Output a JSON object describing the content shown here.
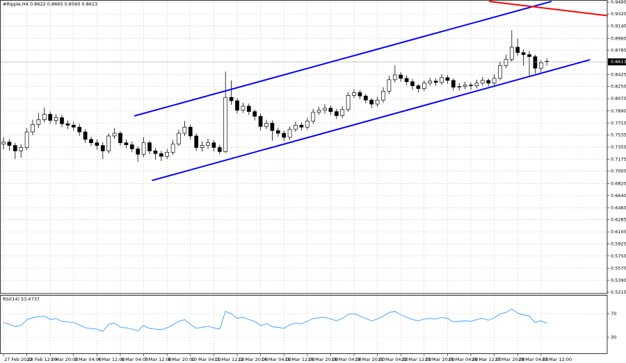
{
  "chart_data": {
    "type": "candlestick",
    "title": "#Ripple,H4 0.8622 0.8665 0.8560 0.8613",
    "up_color": "#ffffff",
    "down_color": "#000000",
    "grid": true,
    "categories": [
      "27 Feb 2022",
      null,
      null,
      null,
      "28 Feb 12:00",
      null,
      null,
      null,
      "1 Mar 20:00",
      null,
      null,
      null,
      "3 Mar 04:00",
      null,
      null,
      null,
      "4 Mar 12:00",
      null,
      null,
      null,
      "6 Mar 04:00",
      null,
      null,
      null,
      "7 Mar 12:00",
      null,
      null,
      null,
      "8 Mar 20:00",
      null,
      null,
      null,
      "10 Mar 04:00",
      null,
      null,
      null,
      "11 Mar 12:00",
      null,
      null,
      null,
      "12 Mar 20:00",
      null,
      null,
      null,
      "14 Mar 04:00",
      null,
      null,
      null,
      "15 Mar 12:00",
      null,
      null,
      null,
      "16 Mar 20:00",
      null,
      null,
      null,
      "18 Mar 04:00",
      null,
      null,
      null,
      "19 Mar 20:00",
      null,
      null,
      null,
      "21 Mar 04:00",
      null,
      null,
      null,
      "22 Mar 12:00",
      null,
      null,
      null,
      "23 Mar 20:00",
      null,
      null,
      null,
      "25 Mar 04:00",
      null,
      null,
      null,
      "26 Mar 12:00",
      null,
      null,
      null,
      "27 Mar 20:00",
      null,
      null,
      null,
      "29 Mar 04:00",
      null,
      null,
      null,
      "30 Mar 12:00",
      null
    ],
    "ohlc": [
      [
        0.74,
        0.75,
        0.732,
        0.743
      ],
      [
        0.743,
        0.747,
        0.73,
        0.738
      ],
      [
        0.738,
        0.742,
        0.718,
        0.73
      ],
      [
        0.73,
        0.74,
        0.72,
        0.735
      ],
      [
        0.735,
        0.764,
        0.731,
        0.758
      ],
      [
        0.758,
        0.776,
        0.753,
        0.769
      ],
      [
        0.769,
        0.786,
        0.764,
        0.776
      ],
      [
        0.776,
        0.794,
        0.772,
        0.784
      ],
      [
        0.784,
        0.788,
        0.77,
        0.775
      ],
      [
        0.775,
        0.784,
        0.769,
        0.779
      ],
      [
        0.779,
        0.783,
        0.765,
        0.77
      ],
      [
        0.77,
        0.775,
        0.762,
        0.768
      ],
      [
        0.768,
        0.773,
        0.76,
        0.765
      ],
      [
        0.765,
        0.77,
        0.752,
        0.758
      ],
      [
        0.758,
        0.762,
        0.742,
        0.747
      ],
      [
        0.747,
        0.751,
        0.737,
        0.742
      ],
      [
        0.742,
        0.747,
        0.732,
        0.738
      ],
      [
        0.738,
        0.743,
        0.718,
        0.73
      ],
      [
        0.73,
        0.756,
        0.726,
        0.752
      ],
      [
        0.752,
        0.764,
        0.748,
        0.756
      ],
      [
        0.756,
        0.759,
        0.738,
        0.742
      ],
      [
        0.742,
        0.747,
        0.734,
        0.739
      ],
      [
        0.739,
        0.744,
        0.728,
        0.733
      ],
      [
        0.733,
        0.737,
        0.714,
        0.725
      ],
      [
        0.725,
        0.75,
        0.721,
        0.742
      ],
      [
        0.742,
        0.745,
        0.725,
        0.73
      ],
      [
        0.73,
        0.734,
        0.717,
        0.726
      ],
      [
        0.726,
        0.73,
        0.715,
        0.722
      ],
      [
        0.722,
        0.733,
        0.718,
        0.728
      ],
      [
        0.728,
        0.746,
        0.724,
        0.74
      ],
      [
        0.74,
        0.761,
        0.737,
        0.756
      ],
      [
        0.756,
        0.774,
        0.752,
        0.765
      ],
      [
        0.765,
        0.769,
        0.747,
        0.752
      ],
      [
        0.752,
        0.756,
        0.73,
        0.735
      ],
      [
        0.735,
        0.744,
        0.729,
        0.738
      ],
      [
        0.738,
        0.748,
        0.733,
        0.742
      ],
      [
        0.742,
        0.746,
        0.729,
        0.735
      ],
      [
        0.735,
        0.739,
        0.725,
        0.729
      ],
      [
        0.729,
        0.847,
        0.727,
        0.809
      ],
      [
        0.809,
        0.834,
        0.798,
        0.804
      ],
      [
        0.804,
        0.808,
        0.785,
        0.79
      ],
      [
        0.79,
        0.801,
        0.786,
        0.796
      ],
      [
        0.796,
        0.8,
        0.783,
        0.788
      ],
      [
        0.788,
        0.791,
        0.775,
        0.781
      ],
      [
        0.781,
        0.785,
        0.76,
        0.766
      ],
      [
        0.766,
        0.776,
        0.762,
        0.771
      ],
      [
        0.771,
        0.775,
        0.745,
        0.76
      ],
      [
        0.76,
        0.764,
        0.751,
        0.756
      ],
      [
        0.756,
        0.76,
        0.744,
        0.75
      ],
      [
        0.75,
        0.766,
        0.746,
        0.762
      ],
      [
        0.762,
        0.773,
        0.758,
        0.768
      ],
      [
        0.768,
        0.772,
        0.76,
        0.765
      ],
      [
        0.765,
        0.779,
        0.761,
        0.774
      ],
      [
        0.774,
        0.792,
        0.77,
        0.787
      ],
      [
        0.787,
        0.795,
        0.783,
        0.79
      ],
      [
        0.79,
        0.799,
        0.785,
        0.793
      ],
      [
        0.793,
        0.797,
        0.783,
        0.788
      ],
      [
        0.788,
        0.792,
        0.777,
        0.782
      ],
      [
        0.782,
        0.796,
        0.778,
        0.791
      ],
      [
        0.791,
        0.817,
        0.788,
        0.812
      ],
      [
        0.812,
        0.821,
        0.808,
        0.816
      ],
      [
        0.816,
        0.82,
        0.806,
        0.811
      ],
      [
        0.811,
        0.814,
        0.8,
        0.805
      ],
      [
        0.805,
        0.808,
        0.793,
        0.799
      ],
      [
        0.799,
        0.81,
        0.795,
        0.805
      ],
      [
        0.805,
        0.824,
        0.801,
        0.818
      ],
      [
        0.818,
        0.841,
        0.814,
        0.835
      ],
      [
        0.835,
        0.856,
        0.831,
        0.842
      ],
      [
        0.842,
        0.846,
        0.832,
        0.837
      ],
      [
        0.837,
        0.841,
        0.827,
        0.832
      ],
      [
        0.832,
        0.836,
        0.82,
        0.826
      ],
      [
        0.826,
        0.829,
        0.816,
        0.822
      ],
      [
        0.822,
        0.834,
        0.818,
        0.83
      ],
      [
        0.83,
        0.838,
        0.826,
        0.833
      ],
      [
        0.833,
        0.837,
        0.826,
        0.831
      ],
      [
        0.831,
        0.843,
        0.827,
        0.838
      ],
      [
        0.838,
        0.842,
        0.829,
        0.834
      ],
      [
        0.834,
        0.837,
        0.819,
        0.824
      ],
      [
        0.824,
        0.83,
        0.819,
        0.825
      ],
      [
        0.825,
        0.832,
        0.821,
        0.827
      ],
      [
        0.827,
        0.831,
        0.82,
        0.826
      ],
      [
        0.826,
        0.835,
        0.822,
        0.83
      ],
      [
        0.83,
        0.839,
        0.826,
        0.834
      ],
      [
        0.834,
        0.837,
        0.825,
        0.83
      ],
      [
        0.83,
        0.843,
        0.827,
        0.837
      ],
      [
        0.837,
        0.862,
        0.834,
        0.856
      ],
      [
        0.856,
        0.872,
        0.852,
        0.865
      ],
      [
        0.865,
        0.908,
        0.861,
        0.883
      ],
      [
        0.883,
        0.896,
        0.87,
        0.875
      ],
      [
        0.875,
        0.88,
        0.856,
        0.872
      ],
      [
        0.872,
        0.877,
        0.841,
        0.869
      ],
      [
        0.869,
        0.872,
        0.844,
        0.852
      ],
      [
        0.852,
        0.864,
        0.846,
        0.86
      ],
      [
        0.8622,
        0.8665,
        0.856,
        0.8613
      ]
    ],
    "ylim": [
      0.5195,
      0.9526
    ],
    "yticks": [
      0.9495,
      {
        "value": 0.932,
        "label": "0.9320"
      },
      {
        "value": 0.914,
        "label": "0.9140"
      },
      {
        "value": 0.896,
        "label": "0.8960"
      },
      0.8785,
      0.8425,
      {
        "value": 0.825,
        "label": "0.8250"
      },
      {
        "value": 0.807,
        "label": "0.8070"
      },
      {
        "value": 0.789,
        "label": "0.7890"
      },
      {
        "value": 0.771,
        "label": "0.7710"
      },
      0.7535,
      0.7355,
      0.7175,
      {
        "value": 0.7,
        "label": "0.7000"
      },
      {
        "value": 0.682,
        "label": "0.6820"
      },
      {
        "value": 0.664,
        "label": "0.6640"
      },
      {
        "value": 0.646,
        "label": "0.6460"
      },
      0.6285,
      0.6105,
      0.5925,
      {
        "value": 0.575,
        "label": "0.5750"
      },
      {
        "value": 0.557,
        "label": "0.5570"
      },
      {
        "value": 0.539,
        "label": "0.5390"
      },
      0.5215
    ],
    "trendlines": [
      {
        "color": "#0000ff",
        "x": [
          22.4,
          93.8
        ],
        "y": [
          0.7816,
          0.9505
        ]
      },
      {
        "color": "#0000ff",
        "x": [
          25.4,
          100.4
        ],
        "y": [
          0.6863,
          0.8645
        ]
      },
      {
        "color": "#ff0000",
        "x": [
          83.1,
          103.3
        ],
        "y": [
          0.9505,
          0.9296
        ]
      }
    ],
    "indicator": {
      "type": "line",
      "label": "RSI(14) 53.4737",
      "color": "#1e90ff",
      "ylim": [
        0,
        100
      ],
      "yticks": [
        70,
        30
      ],
      "values": [
        55,
        52,
        48,
        50,
        60,
        63,
        65,
        66,
        60,
        62,
        57,
        56,
        55,
        51,
        46,
        45,
        44,
        40,
        52,
        54,
        47,
        46,
        44,
        41,
        50,
        45,
        44,
        43,
        46,
        51,
        57,
        60,
        52,
        45,
        47,
        49,
        46,
        44,
        74,
        70,
        62,
        64,
        60,
        57,
        50,
        53,
        48,
        47,
        45,
        51,
        54,
        53,
        57,
        62,
        63,
        64,
        61,
        58,
        62,
        69,
        70,
        66,
        62,
        58,
        61,
        66,
        72,
        74,
        68,
        64,
        60,
        58,
        61,
        62,
        61,
        64,
        62,
        56,
        57,
        58,
        57,
        60,
        62,
        59,
        63,
        70,
        72,
        78,
        71,
        68,
        66,
        55,
        58,
        53.4737
      ]
    }
  }
}
